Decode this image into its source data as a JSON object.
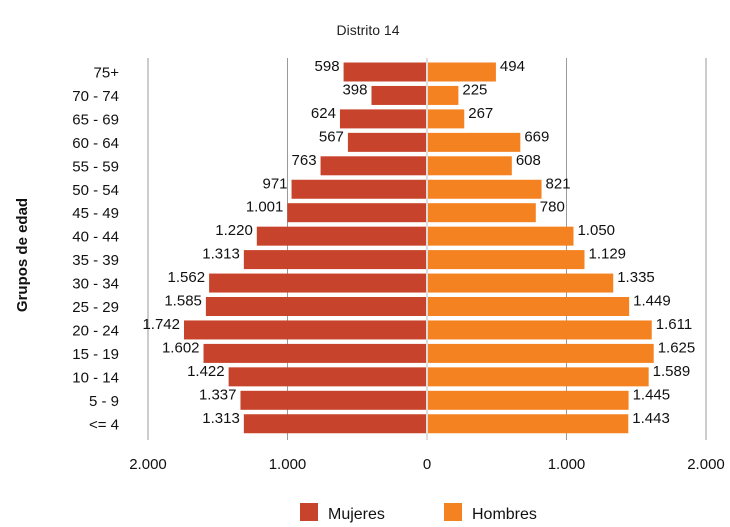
{
  "chart_data": {
    "type": "bar",
    "orientation": "horizontal-pyramid",
    "title": "Distrito 14",
    "ylabel": "Grupos de edad",
    "xlabel": "",
    "categories": [
      "75+",
      "70 - 74",
      "65 - 69",
      "60 - 64",
      "55 - 59",
      "50 - 54",
      "45 - 49",
      "40 - 44",
      "35 - 39",
      "30 - 34",
      "25 - 29",
      "20 - 24",
      "15 - 19",
      "10 - 14",
      "5 - 9",
      "<= 4"
    ],
    "series": [
      {
        "name": "Mujeres",
        "color": "#c8432b",
        "values": [
          598,
          398,
          624,
          567,
          763,
          971,
          1001,
          1220,
          1313,
          1562,
          1585,
          1742,
          1602,
          1422,
          1337,
          1313
        ],
        "labels": [
          "598",
          "398",
          "624",
          "567",
          "763",
          "971",
          "1.001",
          "1.220",
          "1.313",
          "1.562",
          "1.585",
          "1.742",
          "1.602",
          "1.422",
          "1.337",
          "1.313"
        ]
      },
      {
        "name": "Hombres",
        "color": "#f58220",
        "values": [
          494,
          225,
          267,
          669,
          608,
          821,
          780,
          1050,
          1129,
          1335,
          1449,
          1611,
          1625,
          1589,
          1445,
          1443
        ],
        "labels": [
          "494",
          "225",
          "267",
          "669",
          "608",
          "821",
          "780",
          "1.050",
          "1.129",
          "1.335",
          "1.449",
          "1.611",
          "1.625",
          "1.589",
          "1.445",
          "1.443"
        ]
      }
    ],
    "xlim": [
      -2000,
      2000
    ],
    "xticks": [
      -2000,
      -1000,
      0,
      1000,
      2000
    ],
    "xtick_labels": [
      "2.000",
      "1.000",
      "0",
      "1.000",
      "2.000"
    ],
    "grid": "vertical",
    "legend": "bottom"
  }
}
